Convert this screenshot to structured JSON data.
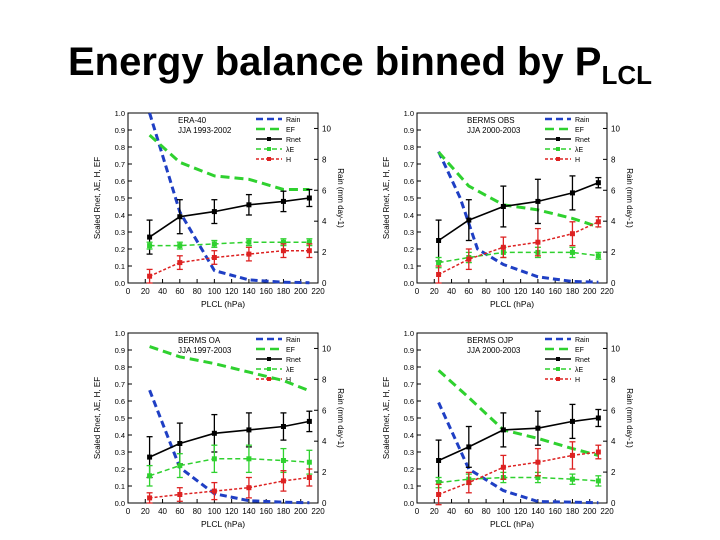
{
  "title": {
    "main": "Energy balance binned by P",
    "sub": "LCL"
  },
  "colors": {
    "rain": "#1f3fc4",
    "ef": "#2fd12f",
    "rnet": "#000000",
    "le": "#2fd12f",
    "h": "#dd2222"
  },
  "legend_labels": [
    "Rain",
    "EF",
    "Rnet",
    "λE",
    "H"
  ],
  "chart_data": [
    {
      "type": "line",
      "title": "ERA-40",
      "subtitle": "JJA 1993-2002",
      "xlabel": "PLCL (hPa)",
      "ylabel": "Scaled Rnet, λE, H, EF",
      "ylabel_right": "Rain (mm day-1)",
      "xlim": [
        0,
        220
      ],
      "ylim": [
        0,
        1.0
      ],
      "ylim_right": [
        0,
        11
      ],
      "x_ticks": [
        0,
        20,
        40,
        60,
        80,
        100,
        120,
        140,
        160,
        180,
        200,
        220
      ],
      "y_ticks": [
        0,
        0.1,
        0.2,
        0.3,
        0.4,
        0.5,
        0.6,
        0.7,
        0.8,
        0.9,
        1.0
      ],
      "y_ticks_right": [
        0,
        2,
        4,
        6,
        8,
        10
      ],
      "series": [
        {
          "name": "Rain",
          "axis": "right",
          "x": [
            25,
            60,
            100,
            140,
            180,
            210
          ],
          "y": [
            11,
            4.6,
            0.8,
            0.2,
            0.05,
            0.02
          ]
        },
        {
          "name": "EF",
          "axis": "left",
          "x": [
            25,
            60,
            100,
            140,
            180,
            210
          ],
          "y": [
            0.87,
            0.71,
            0.63,
            0.61,
            0.55,
            0.55
          ]
        },
        {
          "name": "Rnet",
          "axis": "left",
          "x": [
            25,
            60,
            100,
            140,
            180,
            210
          ],
          "y": [
            0.27,
            0.39,
            0.42,
            0.46,
            0.48,
            0.5
          ],
          "err": [
            0.1,
            0.1,
            0.07,
            0.06,
            0.06,
            0.05
          ]
        },
        {
          "name": "λE",
          "axis": "left",
          "x": [
            25,
            60,
            100,
            140,
            180,
            210
          ],
          "y": [
            0.22,
            0.22,
            0.23,
            0.24,
            0.24,
            0.24
          ],
          "err": [
            0.02,
            0.02,
            0.02,
            0.02,
            0.02,
            0.02
          ]
        },
        {
          "name": "H",
          "axis": "left",
          "x": [
            25,
            60,
            100,
            140,
            180,
            210
          ],
          "y": [
            0.04,
            0.12,
            0.15,
            0.17,
            0.19,
            0.19
          ],
          "err": [
            0.04,
            0.04,
            0.04,
            0.04,
            0.04,
            0.04
          ]
        }
      ]
    },
    {
      "type": "line",
      "title": "BERMS OBS",
      "subtitle": "JJA 2000-2003",
      "xlabel": "PLCL (hPa)",
      "ylabel": "Scaled Rnet, λE, H, EF",
      "ylabel_right": "Rain (mm day-1)",
      "xlim": [
        0,
        220
      ],
      "ylim": [
        0,
        1.0
      ],
      "ylim_right": [
        0,
        11
      ],
      "x_ticks": [
        0,
        20,
        40,
        60,
        80,
        100,
        120,
        140,
        160,
        180,
        200,
        220
      ],
      "y_ticks": [
        0,
        0.1,
        0.2,
        0.3,
        0.4,
        0.5,
        0.6,
        0.7,
        0.8,
        0.9,
        1.0
      ],
      "y_ticks_right": [
        0,
        2,
        4,
        6,
        8,
        10
      ],
      "series": [
        {
          "name": "Rain",
          "axis": "right",
          "x": [
            25,
            50,
            70,
            100,
            140,
            180,
            210
          ],
          "y": [
            8.5,
            5.5,
            2.2,
            1.2,
            0.4,
            0.1,
            0.05
          ]
        },
        {
          "name": "EF",
          "axis": "left",
          "x": [
            25,
            60,
            100,
            140,
            180,
            210
          ],
          "y": [
            0.77,
            0.57,
            0.46,
            0.43,
            0.38,
            0.33
          ]
        },
        {
          "name": "Rnet",
          "axis": "left",
          "x": [
            25,
            60,
            100,
            140,
            180,
            210
          ],
          "y": [
            0.25,
            0.37,
            0.45,
            0.48,
            0.53,
            0.59
          ],
          "err": [
            0.12,
            0.12,
            0.12,
            0.13,
            0.1,
            0.03
          ]
        },
        {
          "name": "λE",
          "axis": "left",
          "x": [
            25,
            60,
            100,
            140,
            180,
            210
          ],
          "y": [
            0.12,
            0.15,
            0.18,
            0.18,
            0.18,
            0.16
          ],
          "err": [
            0.03,
            0.03,
            0.03,
            0.03,
            0.03,
            0.02
          ]
        },
        {
          "name": "H",
          "axis": "left",
          "x": [
            25,
            60,
            100,
            140,
            180,
            210
          ],
          "y": [
            0.05,
            0.14,
            0.21,
            0.24,
            0.29,
            0.36
          ],
          "err": [
            0.05,
            0.06,
            0.06,
            0.08,
            0.07,
            0.03
          ]
        }
      ]
    },
    {
      "type": "line",
      "title": "BERMS OA",
      "subtitle": "JJA 1997-2003",
      "xlabel": "PLCL (hPa)",
      "ylabel": "Scaled Rnet, λE, H, EF",
      "ylabel_right": "Rain (mm day-1)",
      "xlim": [
        0,
        220
      ],
      "ylim": [
        0,
        1.0
      ],
      "ylim_right": [
        0,
        11
      ],
      "x_ticks": [
        0,
        20,
        40,
        60,
        80,
        100,
        120,
        140,
        160,
        180,
        200,
        220
      ],
      "y_ticks": [
        0,
        0.1,
        0.2,
        0.3,
        0.4,
        0.5,
        0.6,
        0.7,
        0.8,
        0.9,
        1.0
      ],
      "y_ticks_right": [
        0,
        2,
        4,
        6,
        8,
        10
      ],
      "series": [
        {
          "name": "Rain",
          "axis": "right",
          "x": [
            25,
            60,
            100,
            140,
            180,
            210
          ],
          "y": [
            7.3,
            2.3,
            0.6,
            0.15,
            0.05,
            0.02
          ]
        },
        {
          "name": "EF",
          "axis": "left",
          "x": [
            25,
            60,
            100,
            140,
            180,
            210
          ],
          "y": [
            0.92,
            0.86,
            0.82,
            0.77,
            0.72,
            0.66
          ]
        },
        {
          "name": "Rnet",
          "axis": "left",
          "x": [
            25,
            60,
            100,
            140,
            180,
            210
          ],
          "y": [
            0.27,
            0.35,
            0.41,
            0.43,
            0.45,
            0.48
          ],
          "err": [
            0.12,
            0.12,
            0.11,
            0.1,
            0.08,
            0.06
          ]
        },
        {
          "name": "λE",
          "axis": "left",
          "x": [
            25,
            60,
            100,
            140,
            180,
            210
          ],
          "y": [
            0.16,
            0.22,
            0.26,
            0.26,
            0.25,
            0.24
          ],
          "err": [
            0.06,
            0.07,
            0.08,
            0.08,
            0.07,
            0.07
          ]
        },
        {
          "name": "H",
          "axis": "left",
          "x": [
            25,
            60,
            100,
            140,
            180,
            210
          ],
          "y": [
            0.03,
            0.05,
            0.07,
            0.09,
            0.13,
            0.15
          ],
          "err": [
            0.03,
            0.04,
            0.05,
            0.06,
            0.06,
            0.05
          ]
        }
      ]
    },
    {
      "type": "line",
      "title": "BERMS OJP",
      "subtitle": "JJA 2000-2003",
      "xlabel": "PLCL (hPa)",
      "ylabel": "Scaled Rnet, λE, H, EF",
      "ylabel_right": "Rain (mm day-1)",
      "xlim": [
        0,
        220
      ],
      "ylim": [
        0,
        1.0
      ],
      "ylim_right": [
        0,
        11
      ],
      "x_ticks": [
        0,
        20,
        40,
        60,
        80,
        100,
        120,
        140,
        160,
        180,
        200,
        220
      ],
      "y_ticks": [
        0,
        0.1,
        0.2,
        0.3,
        0.4,
        0.5,
        0.6,
        0.7,
        0.8,
        0.9,
        1.0
      ],
      "y_ticks_right": [
        0,
        2,
        4,
        6,
        8,
        10
      ],
      "series": [
        {
          "name": "Rain",
          "axis": "right",
          "x": [
            25,
            60,
            100,
            140,
            180,
            210
          ],
          "y": [
            6.5,
            2.2,
            0.8,
            0.1,
            0.05,
            0.02
          ]
        },
        {
          "name": "EF",
          "axis": "left",
          "x": [
            25,
            60,
            100,
            140,
            180,
            210
          ],
          "y": [
            0.78,
            0.62,
            0.43,
            0.38,
            0.32,
            0.28
          ]
        },
        {
          "name": "Rnet",
          "axis": "left",
          "x": [
            25,
            60,
            100,
            140,
            180,
            210
          ],
          "y": [
            0.25,
            0.33,
            0.43,
            0.44,
            0.48,
            0.5
          ],
          "err": [
            0.12,
            0.12,
            0.1,
            0.1,
            0.1,
            0.05
          ]
        },
        {
          "name": "λE",
          "axis": "left",
          "x": [
            25,
            60,
            100,
            140,
            180,
            210
          ],
          "y": [
            0.12,
            0.14,
            0.15,
            0.15,
            0.14,
            0.13
          ],
          "err": [
            0.03,
            0.03,
            0.03,
            0.03,
            0.03,
            0.03
          ]
        },
        {
          "name": "H",
          "axis": "left",
          "x": [
            25,
            60,
            100,
            140,
            180,
            210
          ],
          "y": [
            0.05,
            0.12,
            0.21,
            0.24,
            0.28,
            0.3
          ],
          "err": [
            0.06,
            0.06,
            0.07,
            0.08,
            0.08,
            0.04
          ]
        }
      ]
    }
  ]
}
